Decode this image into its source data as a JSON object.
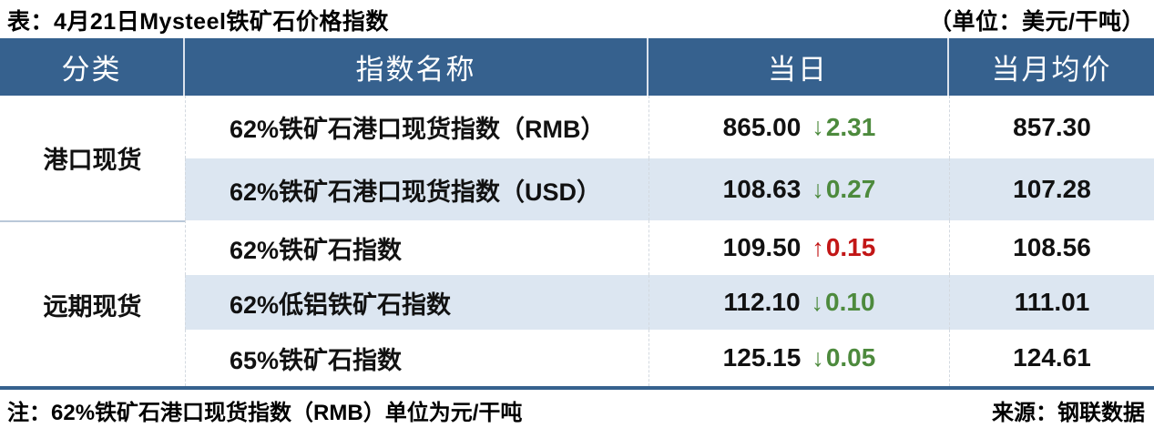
{
  "title": "表：4月21日Mysteel铁矿石价格指数",
  "unit_note": "（单位：美元/干吨）",
  "table": {
    "headers": {
      "category": "分类",
      "index_name": "指数名称",
      "daily": "当日",
      "monthly_avg": "当月均价"
    },
    "groups": [
      {
        "label": "港口现货"
      },
      {
        "label": "远期现货"
      }
    ],
    "rows": [
      {
        "group": "港口现货",
        "name": "62%铁矿石港口现货指数（RMB）",
        "daily_value": "865.00",
        "arrow": "↓",
        "change": "2.31",
        "direction": "down",
        "monthly_avg": "857.30"
      },
      {
        "group": "港口现货",
        "name": "62%铁矿石港口现货指数（USD）",
        "daily_value": "108.63",
        "arrow": "↓",
        "change": "0.27",
        "direction": "down",
        "monthly_avg": "107.28"
      },
      {
        "group": "远期现货",
        "name": "62%铁矿石指数",
        "daily_value": "109.50",
        "arrow": "↑",
        "change": "0.15",
        "direction": "up",
        "monthly_avg": "108.56"
      },
      {
        "group": "远期现货",
        "name": "62%低铝铁矿石指数",
        "daily_value": "112.10",
        "arrow": "↓",
        "change": "0.10",
        "direction": "down",
        "monthly_avg": "111.01"
      },
      {
        "group": "远期现货",
        "name": "65%铁矿石指数",
        "daily_value": "125.15",
        "arrow": "↓",
        "change": "0.05",
        "direction": "down",
        "monthly_avg": "124.61"
      }
    ]
  },
  "footer": {
    "note": "注：62%铁矿石港口现货指数（RMB）单位为元/干吨",
    "source": "来源：钢联数据"
  },
  "colors": {
    "header_bg": "#36618e",
    "row_alt_bg": "#dce6f1",
    "up_red": "#c21616",
    "down_green": "#4d8a3d",
    "border_blue": "#36618e"
  },
  "chart_data": {
    "type": "table",
    "title": "表：4月21日Mysteel铁矿石价格指数",
    "unit": "美元/干吨",
    "columns": [
      "分类",
      "指数名称",
      "当日",
      "当月均价"
    ],
    "rows": [
      [
        "港口现货",
        "62%铁矿石港口现货指数（RMB）",
        "865.00 ↓2.31",
        "857.30"
      ],
      [
        "港口现货",
        "62%铁矿石港口现货指数（USD）",
        "108.63 ↓0.27",
        "107.28"
      ],
      [
        "远期现货",
        "62%铁矿石指数",
        "109.50 ↑0.15",
        "108.56"
      ],
      [
        "远期现货",
        "62%低铝铁矿石指数",
        "112.10 ↓0.10",
        "111.01"
      ],
      [
        "远期现货",
        "65%铁矿石指数",
        "125.15 ↓0.05",
        "124.61"
      ]
    ],
    "notes": [
      "注：62%铁矿石港口现货指数（RMB）单位为元/干吨",
      "来源：钢联数据"
    ]
  }
}
